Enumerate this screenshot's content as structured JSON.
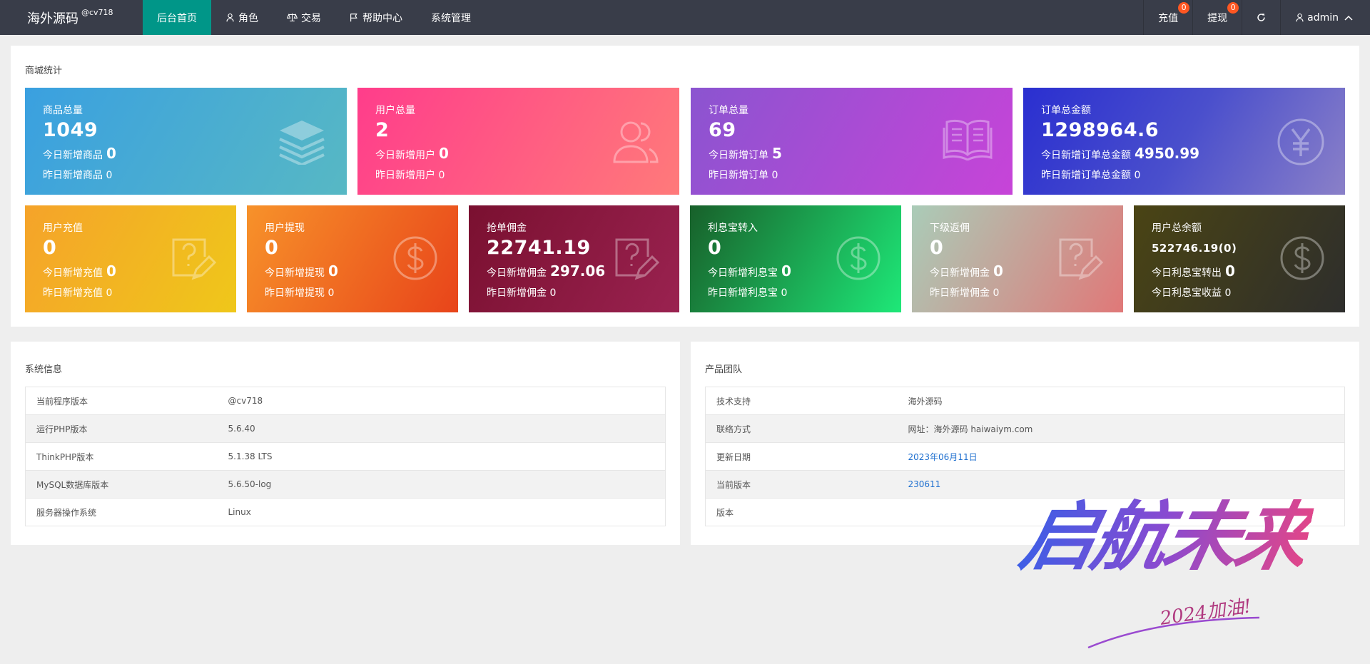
{
  "brand": {
    "name": "海外源码",
    "sup": "@cv718"
  },
  "nav": {
    "items": [
      {
        "label": "后台首页",
        "active": true,
        "icon": "none"
      },
      {
        "label": "角色",
        "icon": "user-icon"
      },
      {
        "label": "交易",
        "icon": "scale-icon"
      },
      {
        "label": "帮助中心",
        "icon": "flag-icon"
      },
      {
        "label": "系统管理",
        "icon": "none"
      }
    ],
    "right": {
      "recharge_label": "充值",
      "recharge_badge": "0",
      "withdraw_label": "提现",
      "withdraw_badge": "0",
      "refresh_icon": "refresh-icon",
      "user_label": "admin"
    }
  },
  "stats": {
    "title": "商城统计",
    "row1": [
      {
        "title": "商品总量",
        "value": "1049",
        "line1_label": "今日新增商品",
        "line1_value": "0",
        "line2": "昨日新增商品  0",
        "icon": "layers-icon"
      },
      {
        "title": "用户总量",
        "value": "2",
        "line1_label": "今日新增用户",
        "line1_value": "0",
        "line2": "昨日新增用户  0",
        "icon": "users-icon"
      },
      {
        "title": "订单总量",
        "value": "69",
        "line1_label": "今日新增订单",
        "line1_value": "5",
        "line2": "昨日新增订单  0",
        "icon": "book-icon"
      },
      {
        "title": "订单总金额",
        "value": "1298964.6",
        "line1_label": "今日新增订单总金额",
        "line1_value": "4950.99",
        "line2": "昨日新增订单总金额  0",
        "icon": "yen-icon"
      }
    ],
    "row2": [
      {
        "title": "用户充值",
        "value": "0",
        "line1_label": "今日新增充值",
        "line1_value": "0",
        "line2": "昨日新增充值  0",
        "icon": "help-note-icon"
      },
      {
        "title": "用户提现",
        "value": "0",
        "line1_label": "今日新增提现",
        "line1_value": "0",
        "line2": "昨日新增提现  0",
        "icon": "dollar-icon"
      },
      {
        "title": "抢单佣金",
        "value": "22741.19",
        "line1_label": "今日新增佣金",
        "line1_value": "297.06",
        "line2": "昨日新增佣金  0",
        "icon": "help-note-icon"
      },
      {
        "title": "利息宝转入",
        "value": "0",
        "line1_label": "今日新增利息宝",
        "line1_value": "0",
        "line2": "昨日新增利息宝  0",
        "icon": "dollar-icon"
      },
      {
        "title": "下级返佣",
        "value": "0",
        "line1_label": "今日新增佣金",
        "line1_value": "0",
        "line2": "昨日新增佣金  0",
        "icon": "help-note-icon"
      },
      {
        "title": "用户总余额",
        "value": "522746.19(0)",
        "line1_label": "今日利息宝转出",
        "line1_value": "0",
        "line2": "今日利息宝收益  0",
        "icon": "dollar-icon"
      }
    ]
  },
  "system_info": {
    "title": "系统信息",
    "rows": [
      {
        "key": "当前程序版本",
        "value": "@cv718"
      },
      {
        "key": "运行PHP版本",
        "value": "5.6.40"
      },
      {
        "key": "ThinkPHP版本",
        "value": "5.1.38 LTS"
      },
      {
        "key": "MySQL数据库版本",
        "value": "5.6.50-log"
      },
      {
        "key": "服务器操作系统",
        "value": "Linux"
      }
    ]
  },
  "team": {
    "title": "产品团队",
    "rows": [
      {
        "key": "技术支持",
        "value": "海外源码"
      },
      {
        "key": "联络方式",
        "value": "网址：海外源码 haiwaiym.com"
      },
      {
        "key": "更新日期",
        "value": "2023年06月11日"
      },
      {
        "key": "当前版本",
        "value": "230611"
      },
      {
        "key": "版本",
        "value": ""
      }
    ]
  },
  "watermark": {
    "main": "启航未来",
    "sub": "2024加油!"
  }
}
